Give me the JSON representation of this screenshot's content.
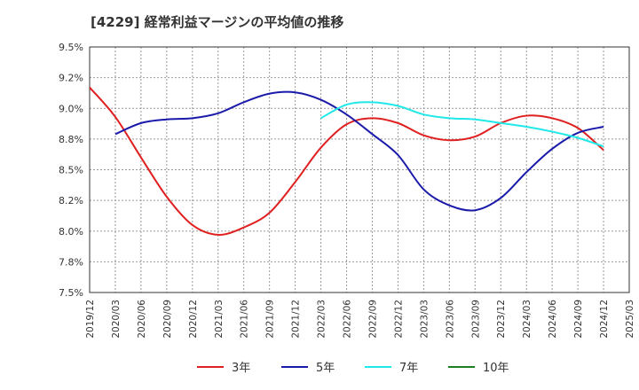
{
  "chart_data": {
    "type": "line",
    "title": "[4229]  経常利益マージンの平均値の推移",
    "xlabel": "",
    "ylabel": "",
    "ylim": [
      7.5,
      9.5
    ],
    "yticks": [
      "9.5%",
      "9.2%",
      "9.0%",
      "8.8%",
      "8.5%",
      "8.2%",
      "8.0%",
      "7.8%",
      "7.5%"
    ],
    "x_ticks": [
      "2019/12",
      "2020/03",
      "2020/06",
      "2020/09",
      "2020/12",
      "2021/03",
      "2021/06",
      "2021/09",
      "2021/12",
      "2022/03",
      "2022/06",
      "2022/09",
      "2022/12",
      "2023/03",
      "2023/06",
      "2023/09",
      "2023/12",
      "2024/03",
      "2024/06",
      "2024/09",
      "2024/12",
      "2025/03"
    ],
    "grid": true,
    "legend_position": "bottom",
    "series": [
      {
        "name": "3年",
        "color": "#e02020",
        "x": [
          "2019/12",
          "2020/03",
          "2020/06",
          "2020/09",
          "2020/12",
          "2021/03",
          "2021/06",
          "2021/09",
          "2021/12",
          "2022/03",
          "2022/06",
          "2022/09",
          "2022/12",
          "2023/03",
          "2023/06",
          "2023/09",
          "2023/12",
          "2024/03",
          "2024/06",
          "2024/09",
          "2024/12"
        ],
        "values": [
          9.17,
          8.93,
          8.6,
          8.28,
          8.05,
          7.97,
          8.03,
          8.15,
          8.4,
          8.68,
          8.87,
          8.92,
          8.88,
          8.78,
          8.74,
          8.77,
          8.88,
          8.94,
          8.92,
          8.84,
          8.66
        ]
      },
      {
        "name": "5年",
        "color": "#1a1aaa",
        "x": [
          "2020/03",
          "2020/06",
          "2020/09",
          "2020/12",
          "2021/03",
          "2021/06",
          "2021/09",
          "2021/12",
          "2022/03",
          "2022/06",
          "2022/09",
          "2022/12",
          "2023/03",
          "2023/06",
          "2023/09",
          "2023/12",
          "2024/03",
          "2024/06",
          "2024/09",
          "2024/12"
        ],
        "values": [
          8.79,
          8.88,
          8.91,
          8.92,
          8.96,
          9.05,
          9.12,
          9.13,
          9.07,
          8.95,
          8.79,
          8.62,
          8.34,
          8.21,
          8.17,
          8.27,
          8.48,
          8.67,
          8.8,
          8.85
        ]
      },
      {
        "name": "7年",
        "color": "#20e8e8",
        "x": [
          "2022/03",
          "2022/06",
          "2022/09",
          "2022/12",
          "2023/03",
          "2023/06",
          "2023/09",
          "2023/12",
          "2024/03",
          "2024/06",
          "2024/09",
          "2024/12"
        ],
        "values": [
          8.92,
          9.03,
          9.05,
          9.02,
          8.95,
          8.92,
          8.91,
          8.88,
          8.85,
          8.81,
          8.76,
          8.69
        ]
      },
      {
        "name": "10年",
        "color": "#208020",
        "x": [],
        "values": []
      }
    ]
  }
}
